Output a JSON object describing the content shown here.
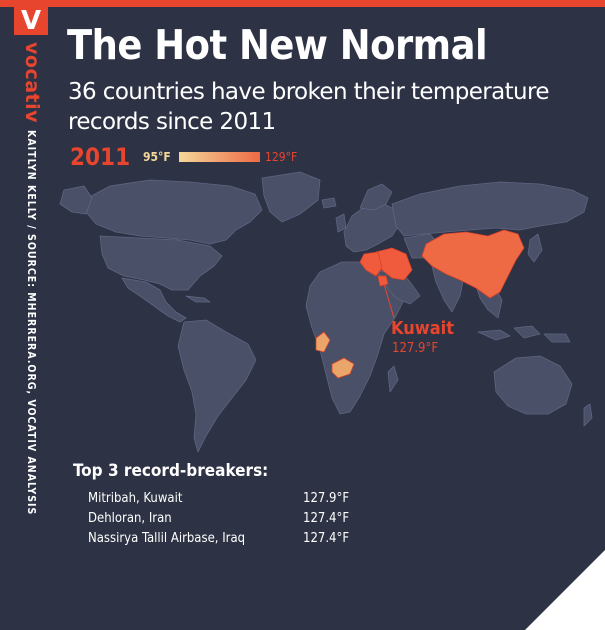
{
  "brand": {
    "logo_letter": "V",
    "logo_word": "vocativ",
    "credit": "KAITLYN KELLY / SOURCE: MHERRERA.ORG, VOCATIV ANALYSIS"
  },
  "header": {
    "title": "The Hot New Normal",
    "subtitle": "36 countries have broken their temperature records since 2011"
  },
  "legend": {
    "year": "2011",
    "min_label": "95°F",
    "max_label": "129°F",
    "min_color": "#f4d79a",
    "max_color": "#ee6a44"
  },
  "map": {
    "highlighted_regions": [
      {
        "name": "Iran",
        "tone": "hot"
      },
      {
        "name": "Iraq",
        "tone": "hot"
      },
      {
        "name": "Kuwait",
        "tone": "hot"
      },
      {
        "name": "China",
        "tone": "warm"
      },
      {
        "name": "Congo",
        "tone": "mild"
      },
      {
        "name": "Zambia",
        "tone": "mild"
      }
    ],
    "callout": {
      "name": "Kuwait",
      "value": "127.9°F"
    }
  },
  "top3": {
    "heading": "Top 3 record-breakers:",
    "items": [
      {
        "place": "Mitribah, Kuwait",
        "temp": "127.9°F"
      },
      {
        "place": "Dehloran, Iran",
        "temp": "127.4°F"
      },
      {
        "place": "Nassirya Tallil Airbase, Iraq",
        "temp": "127.4°F"
      }
    ]
  },
  "colors": {
    "background": "#2d3245",
    "land": "#4a5068",
    "border": "#5e6580",
    "accent": "#e8452e",
    "hot": "#ef5b3c",
    "warm": "#ee6a44",
    "mild": "#e9a56a"
  }
}
